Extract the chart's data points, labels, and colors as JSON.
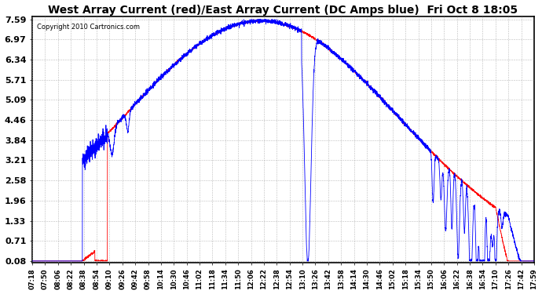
{
  "title": "West Array Current (red)/East Array Current (DC Amps blue)  Fri Oct 8 18:05",
  "copyright": "Copyright 2010 Cartronics.com",
  "yticks": [
    0.08,
    0.71,
    1.33,
    1.96,
    2.58,
    3.21,
    3.84,
    4.46,
    5.09,
    5.71,
    6.34,
    6.97,
    7.59
  ],
  "ymin": 0.08,
  "ymax": 7.59,
  "red_color": "#ff0000",
  "blue_color": "#0000ff",
  "bg_color": "#ffffff",
  "grid_color": "#aaaaaa",
  "title_fontsize": 10,
  "xlabel_fontsize": 6,
  "ylabel_fontsize": 8,
  "xtick_labels": [
    "07:18",
    "07:50",
    "08:06",
    "08:22",
    "08:38",
    "08:54",
    "09:10",
    "09:26",
    "09:42",
    "09:58",
    "10:14",
    "10:30",
    "10:46",
    "11:02",
    "11:18",
    "11:34",
    "11:50",
    "12:06",
    "12:22",
    "12:38",
    "12:54",
    "13:10",
    "13:26",
    "13:42",
    "13:58",
    "14:14",
    "14:30",
    "14:46",
    "15:02",
    "15:18",
    "15:34",
    "15:50",
    "16:06",
    "16:22",
    "16:38",
    "16:54",
    "17:10",
    "17:26",
    "17:42",
    "17:59"
  ]
}
